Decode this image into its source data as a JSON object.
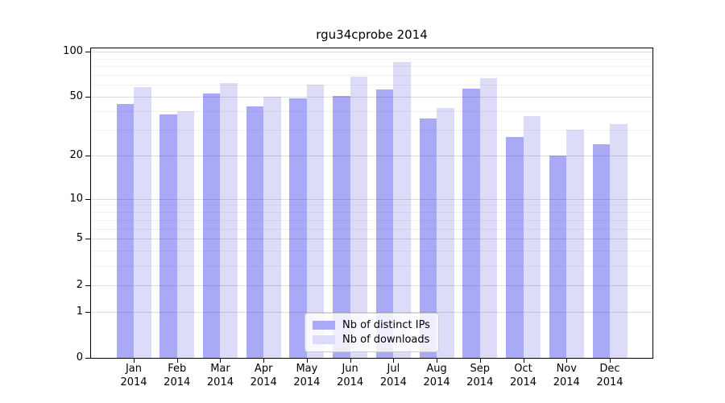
{
  "title": "rgu34cprobe 2014",
  "chart_data": {
    "type": "bar",
    "title": "rgu34cprobe 2014",
    "categories": [
      "Jan 2014",
      "Feb 2014",
      "Mar 2014",
      "Apr 2014",
      "May 2014",
      "Jun 2014",
      "Jul 2014",
      "Aug 2014",
      "Sep 2014",
      "Oct 2014",
      "Nov 2014",
      "Dec 2014"
    ],
    "months": [
      "Jan",
      "Feb",
      "Mar",
      "Apr",
      "May",
      "Jun",
      "Jul",
      "Aug",
      "Sep",
      "Oct",
      "Nov",
      "Dec"
    ],
    "year": "2014",
    "series": [
      {
        "name": "Nb of distinct IPs",
        "color": "#a9a9f8",
        "values": [
          45,
          38,
          53,
          43,
          49,
          51,
          56,
          36,
          57,
          27,
          20,
          24
        ]
      },
      {
        "name": "Nb of downloads",
        "color": "#dcdcf8",
        "values": [
          58,
          40,
          62,
          50,
          60,
          68,
          85,
          42,
          67,
          37,
          30,
          33
        ]
      }
    ],
    "yscale": "log1p",
    "ylim": [
      0,
      105
    ],
    "y_major_ticks": [
      100,
      50,
      20,
      10,
      5,
      2,
      1,
      0
    ],
    "y_minor_gridlines": [
      3,
      4,
      6,
      7,
      8,
      9,
      30,
      40,
      60,
      70,
      80,
      90
    ],
    "grid": true,
    "legend_position": "lower center",
    "xlabel": "",
    "ylabel": ""
  },
  "colors": {
    "bar_distinct_ips": "#a9a9f8",
    "bar_downloads": "#dcdcf8",
    "grid_major": "#d9d9d9",
    "grid_minor": "#efefef",
    "spine": "#000000",
    "background": "#ffffff"
  }
}
